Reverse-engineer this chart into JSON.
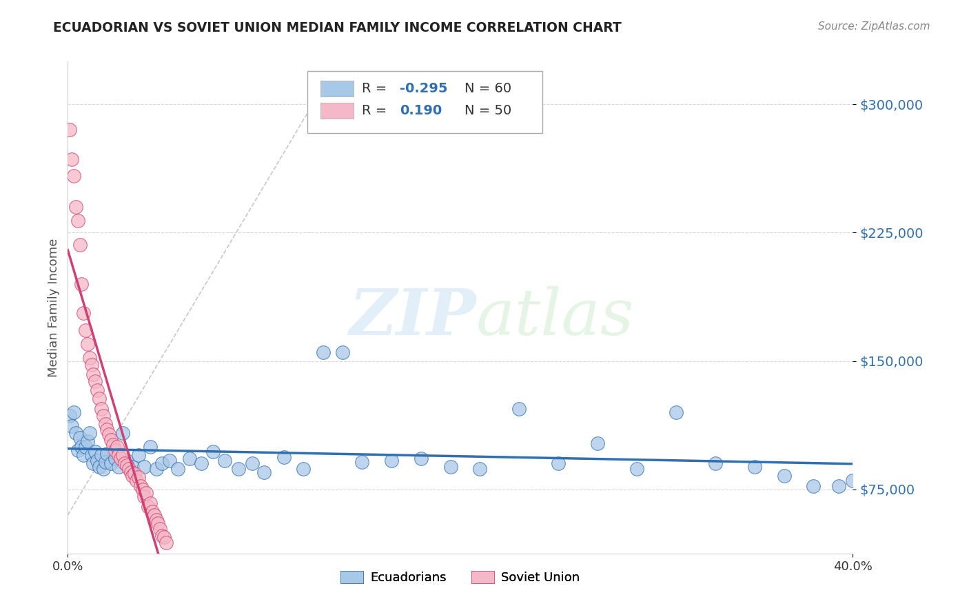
{
  "title": "ECUADORIAN VS SOVIET UNION MEDIAN FAMILY INCOME CORRELATION CHART",
  "source": "Source: ZipAtlas.com",
  "ylabel": "Median Family Income",
  "xmin": 0.0,
  "xmax": 0.4,
  "ymin": 37500,
  "ymax": 325000,
  "yticks": [
    75000,
    150000,
    225000,
    300000
  ],
  "ytick_labels": [
    "$75,000",
    "$150,000",
    "$225,000",
    "$300,000"
  ],
  "watermark": "ZIPatlas",
  "blue_color": "#a8c8e8",
  "pink_color": "#f4b8c8",
  "blue_line_color": "#3070b0",
  "pink_line_color": "#d04070",
  "diagonal_color": "#c8c8c8",
  "background_color": "#ffffff",
  "blue_scatter": [
    [
      0.001,
      118000
    ],
    [
      0.002,
      112000
    ],
    [
      0.003,
      120000
    ],
    [
      0.004,
      108000
    ],
    [
      0.005,
      98000
    ],
    [
      0.006,
      105000
    ],
    [
      0.007,
      100000
    ],
    [
      0.008,
      95000
    ],
    [
      0.009,
      100000
    ],
    [
      0.01,
      103000
    ],
    [
      0.011,
      108000
    ],
    [
      0.012,
      95000
    ],
    [
      0.013,
      90000
    ],
    [
      0.014,
      97000
    ],
    [
      0.015,
      92000
    ],
    [
      0.016,
      88000
    ],
    [
      0.017,
      95000
    ],
    [
      0.018,
      87000
    ],
    [
      0.019,
      91000
    ],
    [
      0.02,
      96000
    ],
    [
      0.022,
      90000
    ],
    [
      0.024,
      93000
    ],
    [
      0.026,
      88000
    ],
    [
      0.028,
      108000
    ],
    [
      0.03,
      92000
    ],
    [
      0.033,
      88000
    ],
    [
      0.036,
      95000
    ],
    [
      0.039,
      88000
    ],
    [
      0.042,
      100000
    ],
    [
      0.045,
      87000
    ],
    [
      0.048,
      90000
    ],
    [
      0.052,
      92000
    ],
    [
      0.056,
      87000
    ],
    [
      0.062,
      93000
    ],
    [
      0.068,
      90000
    ],
    [
      0.074,
      97000
    ],
    [
      0.08,
      92000
    ],
    [
      0.087,
      87000
    ],
    [
      0.094,
      90000
    ],
    [
      0.1,
      85000
    ],
    [
      0.11,
      94000
    ],
    [
      0.12,
      87000
    ],
    [
      0.13,
      155000
    ],
    [
      0.14,
      155000
    ],
    [
      0.15,
      91000
    ],
    [
      0.165,
      92000
    ],
    [
      0.18,
      93000
    ],
    [
      0.195,
      88000
    ],
    [
      0.21,
      87000
    ],
    [
      0.23,
      122000
    ],
    [
      0.25,
      90000
    ],
    [
      0.27,
      102000
    ],
    [
      0.29,
      87000
    ],
    [
      0.31,
      120000
    ],
    [
      0.33,
      90000
    ],
    [
      0.35,
      88000
    ],
    [
      0.365,
      83000
    ],
    [
      0.38,
      77000
    ],
    [
      0.393,
      77000
    ],
    [
      0.4,
      80000
    ]
  ],
  "pink_scatter": [
    [
      0.001,
      285000
    ],
    [
      0.002,
      268000
    ],
    [
      0.003,
      258000
    ],
    [
      0.004,
      240000
    ],
    [
      0.005,
      232000
    ],
    [
      0.006,
      218000
    ],
    [
      0.007,
      195000
    ],
    [
      0.008,
      178000
    ],
    [
      0.009,
      168000
    ],
    [
      0.01,
      160000
    ],
    [
      0.011,
      152000
    ],
    [
      0.012,
      148000
    ],
    [
      0.013,
      142000
    ],
    [
      0.014,
      138000
    ],
    [
      0.015,
      133000
    ],
    [
      0.016,
      128000
    ],
    [
      0.017,
      122000
    ],
    [
      0.018,
      118000
    ],
    [
      0.019,
      113000
    ],
    [
      0.02,
      110000
    ],
    [
      0.021,
      107000
    ],
    [
      0.022,
      104000
    ],
    [
      0.023,
      101000
    ],
    [
      0.024,
      98000
    ],
    [
      0.025,
      100000
    ],
    [
      0.026,
      95000
    ],
    [
      0.027,
      93000
    ],
    [
      0.028,
      95000
    ],
    [
      0.029,
      90000
    ],
    [
      0.03,
      89000
    ],
    [
      0.031,
      87000
    ],
    [
      0.032,
      85000
    ],
    [
      0.033,
      83000
    ],
    [
      0.034,
      84000
    ],
    [
      0.035,
      80000
    ],
    [
      0.036,
      82000
    ],
    [
      0.037,
      77000
    ],
    [
      0.038,
      75000
    ],
    [
      0.039,
      71000
    ],
    [
      0.04,
      73000
    ],
    [
      0.041,
      65000
    ],
    [
      0.042,
      67000
    ],
    [
      0.043,
      62000
    ],
    [
      0.044,
      60000
    ],
    [
      0.045,
      57000
    ],
    [
      0.046,
      55000
    ],
    [
      0.047,
      52000
    ],
    [
      0.048,
      48000
    ],
    [
      0.049,
      47000
    ],
    [
      0.05,
      44000
    ]
  ]
}
